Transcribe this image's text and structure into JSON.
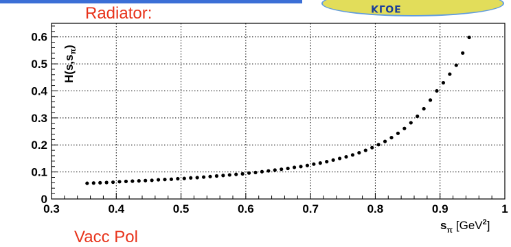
{
  "header": {
    "title": "Radiator:"
  },
  "footer": {
    "text": "Vacc Pol"
  },
  "logo": {
    "text": "KLOE",
    "colors": {
      "fill": "#e2dd5a",
      "ring": "#5f9be0",
      "text": "#1c3f9a"
    }
  },
  "accent_color": "#e8331b",
  "chart_data": {
    "type": "scatter",
    "ylabel": "H(s,s_π)",
    "ylabel_base": "H(s,s",
    "ylabel_sub": "π",
    "ylabel_close": ")",
    "xlabel_main": "s",
    "xlabel_sub": "π",
    "xlabel_unit": "[GeV",
    "xlabel_sup": "2",
    "xlabel_close": "]",
    "xlim": [
      0.3,
      1.0
    ],
    "ylim": [
      0,
      0.65
    ],
    "x_ticks": [
      "0.3",
      "0.4",
      "0.5",
      "0.6",
      "0.7",
      "0.8",
      "0.9",
      "1"
    ],
    "x_tick_values": [
      0.3,
      0.4,
      0.5,
      0.6,
      0.7,
      0.8,
      0.9,
      1.0
    ],
    "y_ticks": [
      "0",
      "0.1",
      "0.2",
      "0.3",
      "0.4",
      "0.5",
      "0.6"
    ],
    "y_tick_values": [
      0,
      0.1,
      0.2,
      0.3,
      0.4,
      0.5,
      0.6
    ],
    "grid": true,
    "marker_color": "#000000",
    "x": [
      0.355,
      0.365,
      0.375,
      0.385,
      0.395,
      0.405,
      0.415,
      0.425,
      0.435,
      0.445,
      0.455,
      0.465,
      0.475,
      0.485,
      0.495,
      0.505,
      0.515,
      0.525,
      0.535,
      0.545,
      0.555,
      0.565,
      0.575,
      0.585,
      0.595,
      0.605,
      0.615,
      0.625,
      0.635,
      0.645,
      0.655,
      0.665,
      0.675,
      0.685,
      0.695,
      0.705,
      0.715,
      0.725,
      0.735,
      0.745,
      0.755,
      0.765,
      0.775,
      0.785,
      0.795,
      0.805,
      0.815,
      0.825,
      0.835,
      0.845,
      0.855,
      0.865,
      0.875,
      0.885,
      0.895,
      0.905,
      0.915,
      0.925,
      0.935,
      0.945
    ],
    "y": [
      0.058,
      0.059,
      0.06,
      0.061,
      0.062,
      0.064,
      0.065,
      0.066,
      0.067,
      0.068,
      0.069,
      0.071,
      0.072,
      0.073,
      0.075,
      0.076,
      0.078,
      0.079,
      0.081,
      0.083,
      0.085,
      0.087,
      0.089,
      0.091,
      0.093,
      0.096,
      0.098,
      0.101,
      0.104,
      0.107,
      0.11,
      0.113,
      0.117,
      0.12,
      0.124,
      0.129,
      0.133,
      0.138,
      0.144,
      0.15,
      0.156,
      0.163,
      0.171,
      0.18,
      0.19,
      0.201,
      0.213,
      0.227,
      0.243,
      0.261,
      0.282,
      0.306,
      0.334,
      0.366,
      0.4,
      0.43,
      0.462,
      0.495,
      0.54,
      0.598
    ]
  }
}
